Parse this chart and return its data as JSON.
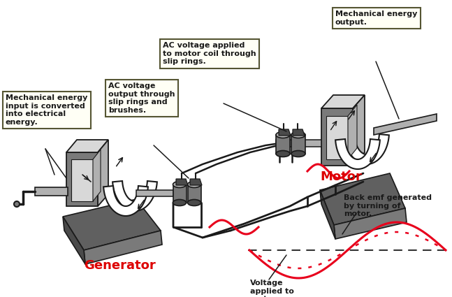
{
  "bg_color": "#ffffff",
  "gray_dark": "#4a4a4a",
  "gray_mid": "#7a7a7a",
  "gray_light": "#b0b0b0",
  "gray_lightest": "#d8d8d8",
  "gray_base": "#606060",
  "red": "#e8001c",
  "red_label": "#dd0000",
  "line_color": "#1a1a1a",
  "box_bg": "#fffff5",
  "box_border": "#555533",
  "text_color": "#1a1a1a",
  "label_generator": "Generator",
  "label_motor": "Motor",
  "box1_text": "Mechanical energy\ninput is converted\ninto electrical\nenergy.",
  "box2_text": "AC voltage\noutput through\nslip rings and\nbrushes.",
  "box3_text": "AC voltage applied\nto motor coil through\nslip rings.",
  "box4_text": "Mechanical energy\noutput.",
  "anno1_text": "Back emf generated\nby turning of\nmotor.",
  "anno2_text": "Voltage\napplied to\nmotor."
}
